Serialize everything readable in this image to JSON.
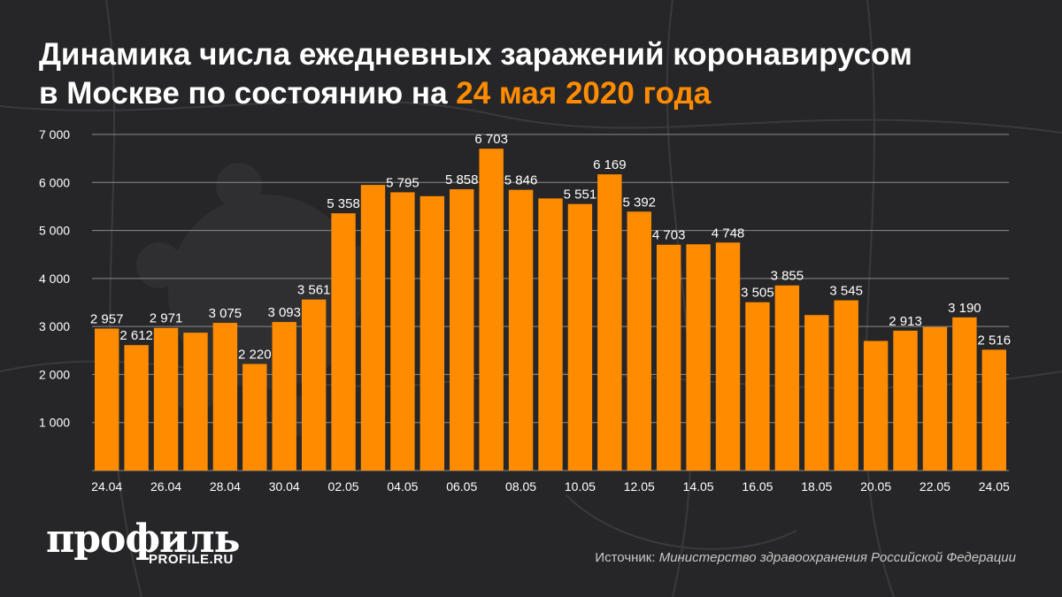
{
  "header": {
    "title_line1": "Динамика числа ежедневных заражений коронавирусом",
    "title_line2": "в Москве по состоянию на",
    "title_date": "24 мая 2020 года"
  },
  "colors": {
    "background": "#262628",
    "bar": "#ff8c00",
    "accent": "#ff8c00",
    "text": "#ffffff",
    "grid": "#8a8a8a"
  },
  "chart_data": {
    "type": "bar",
    "title": "Динамика числа ежедневных заражений коронавирусом в Москве по состоянию на 24 мая 2020 года",
    "xlabel": "",
    "ylabel": "",
    "ylim": [
      0,
      7000
    ],
    "grid": true,
    "yticks": [
      "1 000",
      "2 000",
      "3 000",
      "4 000",
      "5 000",
      "6 000",
      "7 000"
    ],
    "ytick_values": [
      1000,
      2000,
      3000,
      4000,
      5000,
      6000,
      7000
    ],
    "categories": [
      "24.04",
      "25.04",
      "26.04",
      "27.04",
      "28.04",
      "29.04",
      "30.04",
      "01.05",
      "02.05",
      "03.05",
      "04.05",
      "05.05",
      "06.05",
      "07.05",
      "08.05",
      "09.05",
      "10.05",
      "11.05",
      "12.05",
      "13.05",
      "14.05",
      "15.05",
      "16.05",
      "17.05",
      "18.05",
      "19.05",
      "20.05",
      "21.05",
      "22.05",
      "23.05",
      "24.05"
    ],
    "xtick_labels": [
      "24.04",
      "",
      "26.04",
      "",
      "28.04",
      "",
      "30.04",
      "",
      "02.05",
      "",
      "04.05",
      "",
      "06.05",
      "",
      "08.05",
      "",
      "10.05",
      "",
      "12.05",
      "",
      "14.05",
      "",
      "16.05",
      "",
      "18.05",
      "",
      "20.05",
      "",
      "22.05",
      "",
      "24.05"
    ],
    "values": [
      2957,
      2612,
      2971,
      2871,
      3075,
      2220,
      3093,
      3561,
      5358,
      5948,
      5795,
      5714,
      5858,
      6703,
      5846,
      5667,
      5551,
      6169,
      5392,
      4703,
      4712,
      4748,
      3505,
      3855,
      3238,
      3545,
      2699,
      2913,
      2988,
      3190,
      2516
    ],
    "data_labels": [
      "2 957",
      "2 612",
      "2 971",
      "",
      "3 075",
      "2 220",
      "3 093",
      "3 561",
      "5 358",
      "",
      "5 795",
      "",
      "5 858",
      "6 703",
      "5 846",
      "",
      "5 551",
      "6 169",
      "5 392",
      "4 703",
      "",
      "4 748",
      "3 505",
      "3 855",
      "",
      "3 545",
      "",
      "2 913",
      "",
      "3 190",
      "2 516"
    ]
  },
  "footer": {
    "logo": "профиль",
    "logo_sub": "PROFILE.RU",
    "source_label": "Источник:",
    "source_text": "Министерство здравоохранения Российской Федерации"
  }
}
